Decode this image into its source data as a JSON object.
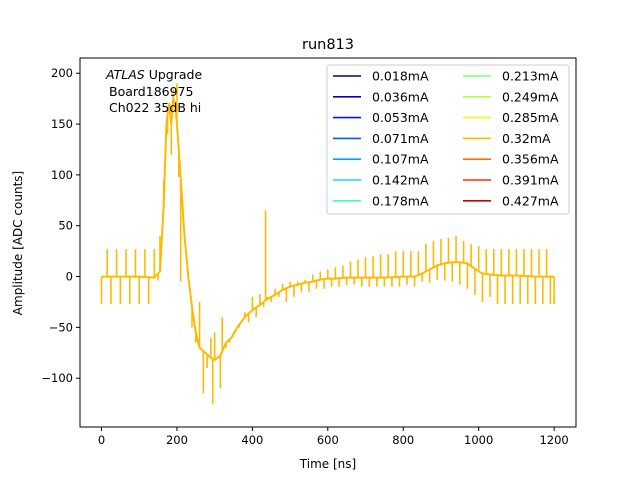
{
  "chart_data": {
    "type": "line",
    "title": "run813",
    "xlabel": "Time [ns]",
    "ylabel": "Amplitude [ADC counts]",
    "xlim": [
      -57,
      1258
    ],
    "ylim": [
      -148,
      215
    ],
    "xticks": [
      0,
      200,
      400,
      600,
      800,
      1000,
      1200
    ],
    "yticks": [
      -100,
      -50,
      0,
      50,
      100,
      150,
      200
    ],
    "grid": false,
    "legend_position": "top-right",
    "legend_columns": 2,
    "annotation": {
      "italic": "ATLAS",
      "line1_rest": " Upgrade",
      "line2": "Board186975",
      "line3": "Ch022 35dB hi"
    },
    "series": [
      {
        "name": "0.018mA",
        "color": "#00007f",
        "visible": false
      },
      {
        "name": "0.036mA",
        "color": "#0000d0",
        "visible": false
      },
      {
        "name": "0.053mA",
        "color": "#0018ff",
        "visible": false
      },
      {
        "name": "0.071mA",
        "color": "#005cff",
        "visible": false
      },
      {
        "name": "0.107mA",
        "color": "#00a4ff",
        "visible": false
      },
      {
        "name": "0.142mA",
        "color": "#0ae4f4",
        "visible": false
      },
      {
        "name": "0.178mA",
        "color": "#43ffbd",
        "visible": false
      },
      {
        "name": "0.213mA",
        "color": "#7cff79",
        "visible": false
      },
      {
        "name": "0.249mA",
        "color": "#b4ff42",
        "visible": false
      },
      {
        "name": "0.285mA",
        "color": "#f1fc06",
        "visible": false
      },
      {
        "name": "0.32mA",
        "color": "#ffb900",
        "visible": true,
        "points": [
          [
            0,
            0
          ],
          [
            50,
            0
          ],
          [
            100,
            0
          ],
          [
            140,
            -1
          ],
          [
            155,
            5
          ],
          [
            165,
            70
          ],
          [
            172,
            150
          ],
          [
            176,
            162
          ],
          [
            180,
            170
          ],
          [
            185,
            150
          ],
          [
            190,
            175
          ],
          [
            195,
            170
          ],
          [
            200,
            150
          ],
          [
            205,
            125
          ],
          [
            212,
            85
          ],
          [
            220,
            40
          ],
          [
            230,
            0
          ],
          [
            240,
            -30
          ],
          [
            250,
            -55
          ],
          [
            260,
            -70
          ],
          [
            275,
            -75
          ],
          [
            290,
            -80
          ],
          [
            300,
            -82
          ],
          [
            315,
            -78
          ],
          [
            330,
            -65
          ],
          [
            345,
            -60
          ],
          [
            360,
            -50
          ],
          [
            380,
            -40
          ],
          [
            400,
            -33
          ],
          [
            420,
            -28
          ],
          [
            440,
            -22
          ],
          [
            460,
            -18
          ],
          [
            480,
            -13
          ],
          [
            500,
            -10
          ],
          [
            520,
            -8
          ],
          [
            540,
            -6
          ],
          [
            560,
            -5
          ],
          [
            580,
            -3
          ],
          [
            600,
            -2
          ],
          [
            620,
            -2
          ],
          [
            650,
            -1
          ],
          [
            700,
            -1
          ],
          [
            750,
            -1
          ],
          [
            800,
            0
          ],
          [
            830,
            0
          ],
          [
            850,
            3
          ],
          [
            870,
            7
          ],
          [
            890,
            11
          ],
          [
            910,
            13
          ],
          [
            930,
            14
          ],
          [
            950,
            14
          ],
          [
            970,
            13
          ],
          [
            985,
            9
          ],
          [
            1000,
            5
          ],
          [
            1010,
            3
          ],
          [
            1030,
            2
          ],
          [
            1060,
            1
          ],
          [
            1100,
            1
          ],
          [
            1150,
            0
          ],
          [
            1200,
            0
          ]
        ],
        "spikes": [
          [
            0,
            -27
          ],
          [
            15,
            27
          ],
          [
            25,
            -27
          ],
          [
            40,
            27
          ],
          [
            50,
            -27
          ],
          [
            65,
            27
          ],
          [
            75,
            -27
          ],
          [
            90,
            27
          ],
          [
            100,
            -27
          ],
          [
            115,
            27
          ],
          [
            125,
            -27
          ],
          [
            140,
            27
          ],
          [
            150,
            -4
          ],
          [
            155,
            40
          ],
          [
            165,
            95
          ],
          [
            175,
            140
          ],
          [
            180,
            160
          ],
          [
            185,
            120
          ],
          [
            190,
            185
          ],
          [
            200,
            190
          ],
          [
            205,
            98
          ],
          [
            210,
            -5
          ],
          [
            215,
            75
          ],
          [
            225,
            17
          ],
          [
            240,
            -50
          ],
          [
            250,
            -65
          ],
          [
            260,
            -25
          ],
          [
            270,
            -115
          ],
          [
            280,
            -90
          ],
          [
            290,
            -60
          ],
          [
            295,
            -125
          ],
          [
            300,
            -55
          ],
          [
            315,
            -110
          ],
          [
            320,
            -40
          ],
          [
            330,
            -70
          ],
          [
            340,
            -65
          ],
          [
            350,
            -55
          ],
          [
            365,
            -50
          ],
          [
            380,
            -35
          ],
          [
            390,
            -45
          ],
          [
            400,
            -20
          ],
          [
            410,
            -40
          ],
          [
            420,
            -17
          ],
          [
            430,
            -30
          ],
          [
            435,
            65
          ],
          [
            440,
            -20
          ],
          [
            450,
            -25
          ],
          [
            460,
            -12
          ],
          [
            470,
            -20
          ],
          [
            480,
            -7
          ],
          [
            490,
            -25
          ],
          [
            500,
            -5
          ],
          [
            510,
            -20
          ],
          [
            520,
            -5
          ],
          [
            530,
            -15
          ],
          [
            540,
            -3
          ],
          [
            550,
            -15
          ],
          [
            560,
            2
          ],
          [
            570,
            -12
          ],
          [
            580,
            5
          ],
          [
            590,
            -12
          ],
          [
            600,
            7
          ],
          [
            610,
            -10
          ],
          [
            620,
            9
          ],
          [
            630,
            -10
          ],
          [
            640,
            11
          ],
          [
            650,
            -8
          ],
          [
            660,
            15
          ],
          [
            670,
            -8
          ],
          [
            680,
            17
          ],
          [
            690,
            -10
          ],
          [
            700,
            19
          ],
          [
            710,
            -10
          ],
          [
            720,
            20
          ],
          [
            730,
            -10
          ],
          [
            740,
            22
          ],
          [
            750,
            -10
          ],
          [
            760,
            22
          ],
          [
            770,
            -10
          ],
          [
            780,
            25
          ],
          [
            790,
            -10
          ],
          [
            800,
            25
          ],
          [
            810,
            -8
          ],
          [
            820,
            25
          ],
          [
            830,
            -10
          ],
          [
            840,
            25
          ],
          [
            850,
            -5
          ],
          [
            860,
            32
          ],
          [
            870,
            -6
          ],
          [
            880,
            35
          ],
          [
            890,
            -3
          ],
          [
            900,
            37
          ],
          [
            910,
            -4
          ],
          [
            920,
            38
          ],
          [
            930,
            -5
          ],
          [
            940,
            40
          ],
          [
            950,
            -8
          ],
          [
            960,
            35
          ],
          [
            970,
            -12
          ],
          [
            980,
            32
          ],
          [
            990,
            -18
          ],
          [
            1000,
            30
          ],
          [
            1010,
            -25
          ],
          [
            1020,
            27
          ],
          [
            1030,
            -20
          ],
          [
            1040,
            27
          ],
          [
            1050,
            -27
          ],
          [
            1060,
            27
          ],
          [
            1070,
            -27
          ],
          [
            1080,
            27
          ],
          [
            1090,
            -27
          ],
          [
            1100,
            27
          ],
          [
            1110,
            -27
          ],
          [
            1120,
            27
          ],
          [
            1130,
            -27
          ],
          [
            1140,
            27
          ],
          [
            1150,
            -27
          ],
          [
            1160,
            27
          ],
          [
            1170,
            -27
          ],
          [
            1180,
            27
          ],
          [
            1190,
            -27
          ],
          [
            1200,
            -27
          ]
        ]
      },
      {
        "name": "0.356mA",
        "color": "#ff6f00",
        "visible": false
      },
      {
        "name": "0.391mA",
        "color": "#ff3000",
        "visible": false
      },
      {
        "name": "0.427mA",
        "color": "#c80000",
        "visible": false
      }
    ]
  }
}
